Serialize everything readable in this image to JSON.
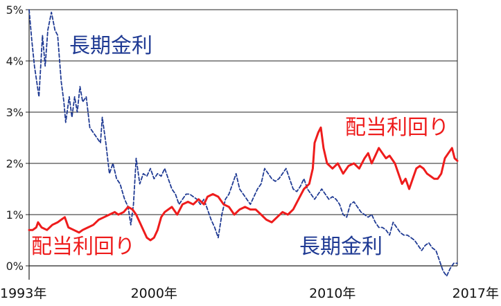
{
  "chart_data": {
    "type": "line",
    "xlim": [
      1993,
      2017
    ],
    "ylim": [
      0,
      5
    ],
    "grid": true,
    "y_ticks": [
      "0%",
      "1%",
      "2%",
      "3%",
      "4%",
      "5%"
    ],
    "x_ticks": [
      {
        "value": 1993,
        "label": "1993年"
      },
      {
        "value": 2000,
        "label": "2000年"
      },
      {
        "value": 2010,
        "label": "2010年"
      },
      {
        "value": 2017,
        "label": "2017年"
      }
    ],
    "series": [
      {
        "name": "長期金利",
        "color": "#1f3a93",
        "style": "dashed",
        "points": [
          [
            1993.0,
            5.0
          ],
          [
            1993.15,
            4.4
          ],
          [
            1993.3,
            3.9
          ],
          [
            1993.55,
            3.3
          ],
          [
            1993.75,
            4.5
          ],
          [
            1993.9,
            3.9
          ],
          [
            1994.05,
            4.6
          ],
          [
            1994.25,
            4.95
          ],
          [
            1994.45,
            4.6
          ],
          [
            1994.6,
            4.5
          ],
          [
            1994.8,
            3.6
          ],
          [
            1994.95,
            3.2
          ],
          [
            1995.05,
            2.8
          ],
          [
            1995.25,
            3.3
          ],
          [
            1995.4,
            2.9
          ],
          [
            1995.55,
            3.3
          ],
          [
            1995.7,
            3.0
          ],
          [
            1995.85,
            3.5
          ],
          [
            1996.0,
            3.2
          ],
          [
            1996.2,
            3.3
          ],
          [
            1996.4,
            2.7
          ],
          [
            1996.6,
            2.6
          ],
          [
            1996.8,
            2.5
          ],
          [
            1997.0,
            2.4
          ],
          [
            1997.1,
            2.9
          ],
          [
            1997.3,
            2.4
          ],
          [
            1997.5,
            1.8
          ],
          [
            1997.7,
            2.0
          ],
          [
            1997.9,
            1.7
          ],
          [
            1998.1,
            1.6
          ],
          [
            1998.35,
            1.3
          ],
          [
            1998.55,
            1.15
          ],
          [
            1998.7,
            0.8
          ],
          [
            1998.85,
            1.2
          ],
          [
            1999.0,
            2.1
          ],
          [
            1999.2,
            1.6
          ],
          [
            1999.4,
            1.8
          ],
          [
            1999.6,
            1.75
          ],
          [
            1999.8,
            1.9
          ],
          [
            2000.0,
            1.7
          ],
          [
            2000.2,
            1.8
          ],
          [
            2000.4,
            1.75
          ],
          [
            2000.6,
            1.9
          ],
          [
            2000.8,
            1.7
          ],
          [
            2001.0,
            1.5
          ],
          [
            2001.2,
            1.4
          ],
          [
            2001.4,
            1.2
          ],
          [
            2001.6,
            1.3
          ],
          [
            2001.8,
            1.4
          ],
          [
            2002.0,
            1.4
          ],
          [
            2002.2,
            1.35
          ],
          [
            2002.4,
            1.3
          ],
          [
            2002.6,
            1.2
          ],
          [
            2002.8,
            1.3
          ],
          [
            2003.0,
            1.1
          ],
          [
            2003.2,
            0.9
          ],
          [
            2003.4,
            0.75
          ],
          [
            2003.6,
            0.55
          ],
          [
            2003.8,
            1.0
          ],
          [
            2004.0,
            1.3
          ],
          [
            2004.2,
            1.4
          ],
          [
            2004.4,
            1.6
          ],
          [
            2004.6,
            1.8
          ],
          [
            2004.8,
            1.5
          ],
          [
            2005.0,
            1.4
          ],
          [
            2005.2,
            1.3
          ],
          [
            2005.4,
            1.2
          ],
          [
            2005.6,
            1.35
          ],
          [
            2005.8,
            1.5
          ],
          [
            2006.0,
            1.6
          ],
          [
            2006.2,
            1.9
          ],
          [
            2006.4,
            1.8
          ],
          [
            2006.6,
            1.7
          ],
          [
            2006.8,
            1.65
          ],
          [
            2007.0,
            1.7
          ],
          [
            2007.2,
            1.8
          ],
          [
            2007.4,
            1.9
          ],
          [
            2007.6,
            1.7
          ],
          [
            2007.8,
            1.5
          ],
          [
            2008.0,
            1.45
          ],
          [
            2008.2,
            1.55
          ],
          [
            2008.4,
            1.7
          ],
          [
            2008.6,
            1.5
          ],
          [
            2008.8,
            1.4
          ],
          [
            2009.0,
            1.3
          ],
          [
            2009.2,
            1.4
          ],
          [
            2009.4,
            1.5
          ],
          [
            2009.6,
            1.4
          ],
          [
            2009.8,
            1.3
          ],
          [
            2010.0,
            1.35
          ],
          [
            2010.2,
            1.3
          ],
          [
            2010.4,
            1.2
          ],
          [
            2010.6,
            1.0
          ],
          [
            2010.8,
            0.95
          ],
          [
            2011.0,
            1.2
          ],
          [
            2011.2,
            1.25
          ],
          [
            2011.4,
            1.15
          ],
          [
            2011.6,
            1.05
          ],
          [
            2011.8,
            1.0
          ],
          [
            2012.0,
            0.95
          ],
          [
            2012.2,
            1.0
          ],
          [
            2012.4,
            0.85
          ],
          [
            2012.6,
            0.75
          ],
          [
            2012.8,
            0.75
          ],
          [
            2013.0,
            0.7
          ],
          [
            2013.2,
            0.6
          ],
          [
            2013.4,
            0.85
          ],
          [
            2013.6,
            0.75
          ],
          [
            2013.8,
            0.65
          ],
          [
            2014.0,
            0.6
          ],
          [
            2014.2,
            0.6
          ],
          [
            2014.4,
            0.55
          ],
          [
            2014.6,
            0.5
          ],
          [
            2014.8,
            0.4
          ],
          [
            2015.0,
            0.3
          ],
          [
            2015.2,
            0.4
          ],
          [
            2015.4,
            0.45
          ],
          [
            2015.6,
            0.35
          ],
          [
            2015.8,
            0.3
          ],
          [
            2016.0,
            0.1
          ],
          [
            2016.2,
            -0.1
          ],
          [
            2016.4,
            -0.2
          ],
          [
            2016.6,
            -0.05
          ],
          [
            2016.8,
            0.05
          ],
          [
            2017.0,
            0.05
          ]
        ]
      },
      {
        "name": "配当利回り",
        "color": "#ee1c1c",
        "style": "solid",
        "points": [
          [
            1993.0,
            0.7
          ],
          [
            1993.2,
            0.7
          ],
          [
            1993.4,
            0.75
          ],
          [
            1993.5,
            0.85
          ],
          [
            1993.7,
            0.75
          ],
          [
            1994.0,
            0.7
          ],
          [
            1994.3,
            0.8
          ],
          [
            1994.6,
            0.85
          ],
          [
            1994.8,
            0.9
          ],
          [
            1995.0,
            0.95
          ],
          [
            1995.2,
            0.75
          ],
          [
            1995.5,
            0.7
          ],
          [
            1995.8,
            0.65
          ],
          [
            1996.0,
            0.7
          ],
          [
            1996.3,
            0.75
          ],
          [
            1996.6,
            0.8
          ],
          [
            1996.9,
            0.9
          ],
          [
            1997.2,
            0.95
          ],
          [
            1997.5,
            1.0
          ],
          [
            1997.8,
            1.05
          ],
          [
            1998.0,
            1.0
          ],
          [
            1998.3,
            1.05
          ],
          [
            1998.55,
            1.15
          ],
          [
            1998.8,
            1.1
          ],
          [
            1999.0,
            1.0
          ],
          [
            1999.2,
            0.85
          ],
          [
            1999.4,
            0.7
          ],
          [
            1999.6,
            0.55
          ],
          [
            1999.8,
            0.5
          ],
          [
            2000.0,
            0.55
          ],
          [
            2000.2,
            0.7
          ],
          [
            2000.4,
            0.95
          ],
          [
            2000.6,
            1.05
          ],
          [
            2000.8,
            1.1
          ],
          [
            2001.0,
            1.15
          ],
          [
            2001.3,
            1.0
          ],
          [
            2001.6,
            1.2
          ],
          [
            2001.9,
            1.25
          ],
          [
            2002.2,
            1.2
          ],
          [
            2002.5,
            1.3
          ],
          [
            2002.8,
            1.2
          ],
          [
            2003.0,
            1.35
          ],
          [
            2003.3,
            1.4
          ],
          [
            2003.6,
            1.35
          ],
          [
            2003.9,
            1.2
          ],
          [
            2004.2,
            1.15
          ],
          [
            2004.5,
            1.0
          ],
          [
            2004.8,
            1.1
          ],
          [
            2005.1,
            1.15
          ],
          [
            2005.4,
            1.1
          ],
          [
            2005.7,
            1.1
          ],
          [
            2006.0,
            1.0
          ],
          [
            2006.3,
            0.9
          ],
          [
            2006.6,
            0.85
          ],
          [
            2006.9,
            0.95
          ],
          [
            2007.2,
            1.05
          ],
          [
            2007.5,
            1.0
          ],
          [
            2007.8,
            1.1
          ],
          [
            2008.1,
            1.3
          ],
          [
            2008.4,
            1.5
          ],
          [
            2008.7,
            1.6
          ],
          [
            2008.9,
            1.9
          ],
          [
            2009.0,
            2.4
          ],
          [
            2009.2,
            2.6
          ],
          [
            2009.35,
            2.7
          ],
          [
            2009.5,
            2.3
          ],
          [
            2009.7,
            2.0
          ],
          [
            2010.0,
            1.9
          ],
          [
            2010.3,
            2.0
          ],
          [
            2010.6,
            1.8
          ],
          [
            2010.9,
            1.95
          ],
          [
            2011.2,
            2.0
          ],
          [
            2011.5,
            1.9
          ],
          [
            2011.8,
            2.1
          ],
          [
            2012.0,
            2.2
          ],
          [
            2012.2,
            2.0
          ],
          [
            2012.4,
            2.15
          ],
          [
            2012.6,
            2.3
          ],
          [
            2012.8,
            2.2
          ],
          [
            2013.0,
            2.1
          ],
          [
            2013.2,
            2.15
          ],
          [
            2013.5,
            2.0
          ],
          [
            2013.7,
            1.8
          ],
          [
            2013.9,
            1.6
          ],
          [
            2014.1,
            1.7
          ],
          [
            2014.3,
            1.5
          ],
          [
            2014.5,
            1.7
          ],
          [
            2014.7,
            1.9
          ],
          [
            2014.9,
            1.95
          ],
          [
            2015.1,
            1.9
          ],
          [
            2015.3,
            1.8
          ],
          [
            2015.5,
            1.75
          ],
          [
            2015.7,
            1.7
          ],
          [
            2015.9,
            1.7
          ],
          [
            2016.1,
            1.8
          ],
          [
            2016.3,
            2.1
          ],
          [
            2016.5,
            2.2
          ],
          [
            2016.7,
            2.3
          ],
          [
            2016.85,
            2.1
          ],
          [
            2017.0,
            2.05
          ]
        ]
      }
    ],
    "annotations": [
      {
        "text": "長期金利",
        "series": 0
      },
      {
        "text": "配当利回り",
        "series": 1
      },
      {
        "text": "配当利回り",
        "series": 1
      },
      {
        "text": "長期金利",
        "series": 0
      }
    ]
  }
}
